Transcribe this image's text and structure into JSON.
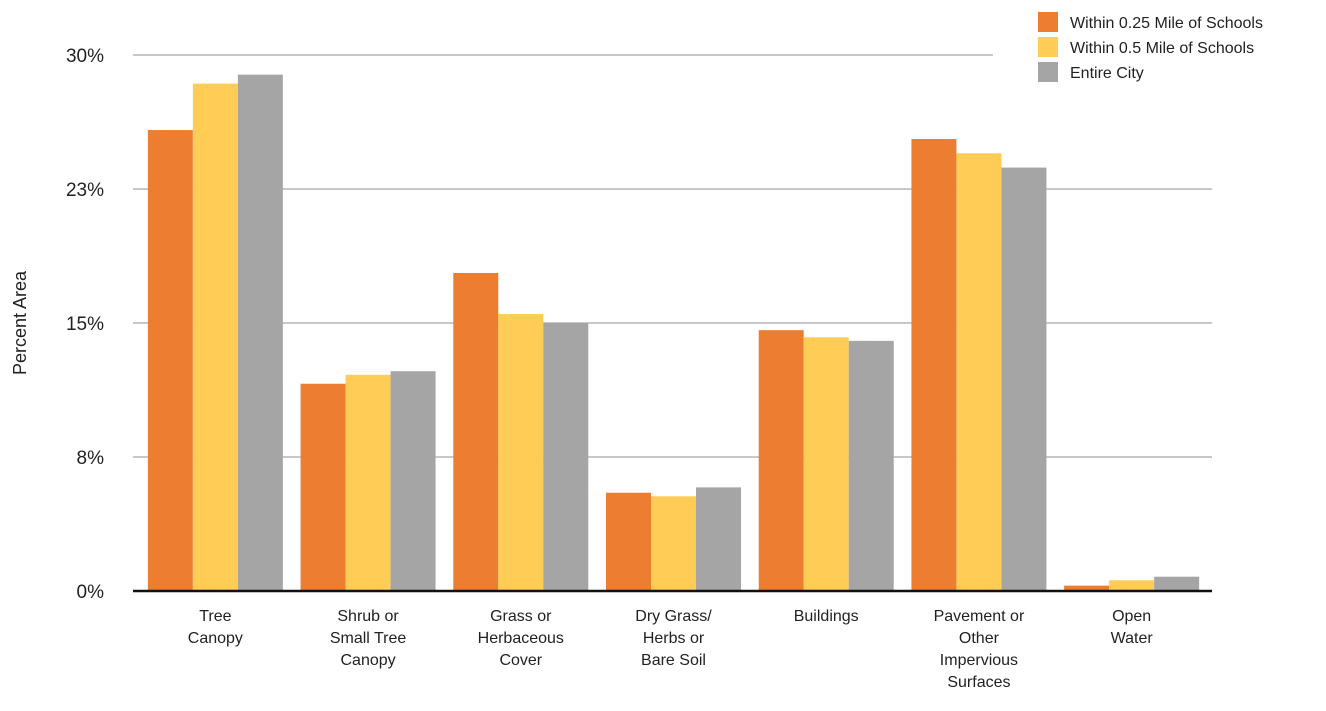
{
  "chart_data": {
    "type": "bar",
    "ylabel": "Percent Area",
    "ylim": [
      0,
      30
    ],
    "grid": true,
    "legend_position": "top-right",
    "y_ticks": [
      {
        "value": 0,
        "label": "0%"
      },
      {
        "value": 7.5,
        "label": "8%"
      },
      {
        "value": 15,
        "label": "15%"
      },
      {
        "value": 22.5,
        "label": "23%"
      },
      {
        "value": 30,
        "label": "30%"
      }
    ],
    "categories": [
      [
        "Tree",
        "Canopy"
      ],
      [
        "Shrub or",
        "Small Tree",
        "Canopy"
      ],
      [
        "Grass or",
        "Herbaceous",
        "Cover"
      ],
      [
        "Dry Grass/",
        "Herbs or",
        "Bare Soil"
      ],
      [
        "Buildings"
      ],
      [
        "Pavement or",
        "Other",
        "Impervious",
        "Surfaces"
      ],
      [
        "Open",
        "Water"
      ]
    ],
    "series": [
      {
        "name": "Within 0.25 Mile of Schools",
        "color": "#ED7D31",
        "values": [
          25.8,
          11.6,
          17.8,
          5.5,
          14.6,
          25.3,
          0.3
        ]
      },
      {
        "name": "Within 0.5 Mile of Schools",
        "color": "#FFCC55",
        "values": [
          28.4,
          12.1,
          15.5,
          5.3,
          14.2,
          24.5,
          0.6
        ]
      },
      {
        "name": "Entire City",
        "color": "#A5A5A5",
        "values": [
          28.9,
          12.3,
          15.0,
          5.8,
          14.0,
          23.7,
          0.8
        ]
      }
    ]
  }
}
